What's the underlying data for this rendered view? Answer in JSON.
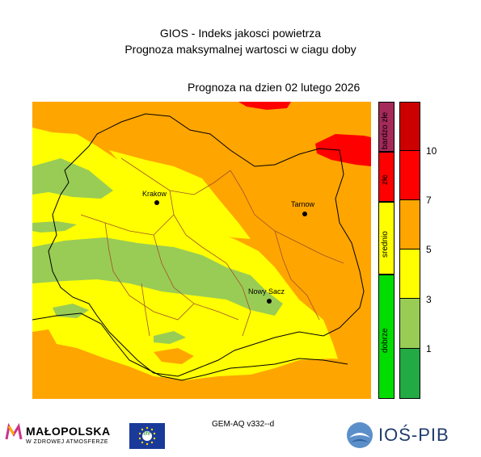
{
  "header": {
    "title": "GIOS - Indeks jakosci powietrza",
    "subtitle": "Prognoza maksymalnej wartosci w ciagu doby",
    "forecast_date": "Prognoza na dzien  02 lutego 2026"
  },
  "cities": [
    {
      "name": "Krakow"
    },
    {
      "name": "Tarnow"
    },
    {
      "name": "Nowy Sacz"
    }
  ],
  "categories": [
    {
      "label": "bardzo złe",
      "color": "#a52a5a"
    },
    {
      "label": "złe",
      "color": "#ff0000"
    },
    {
      "label": "srednio",
      "color": "#ffff00"
    },
    {
      "label": "dobrze",
      "color": "#00dd00"
    }
  ],
  "scale": {
    "colors": [
      "#cc0000",
      "#ff0000",
      "#ffa500",
      "#ffff00",
      "#99cc55",
      "#22aa44"
    ],
    "ticks": [
      "10",
      "7",
      "5",
      "3",
      "1"
    ]
  },
  "footer": {
    "model": "GEM-AQ v332--d",
    "logo_malopolska": "MAŁOPOLSKA",
    "logo_malopolska_sub": "W ZDROWEJ ATMOSFERZE",
    "logo_eu": "life",
    "logo_ios": "IOŚ-PIB"
  }
}
